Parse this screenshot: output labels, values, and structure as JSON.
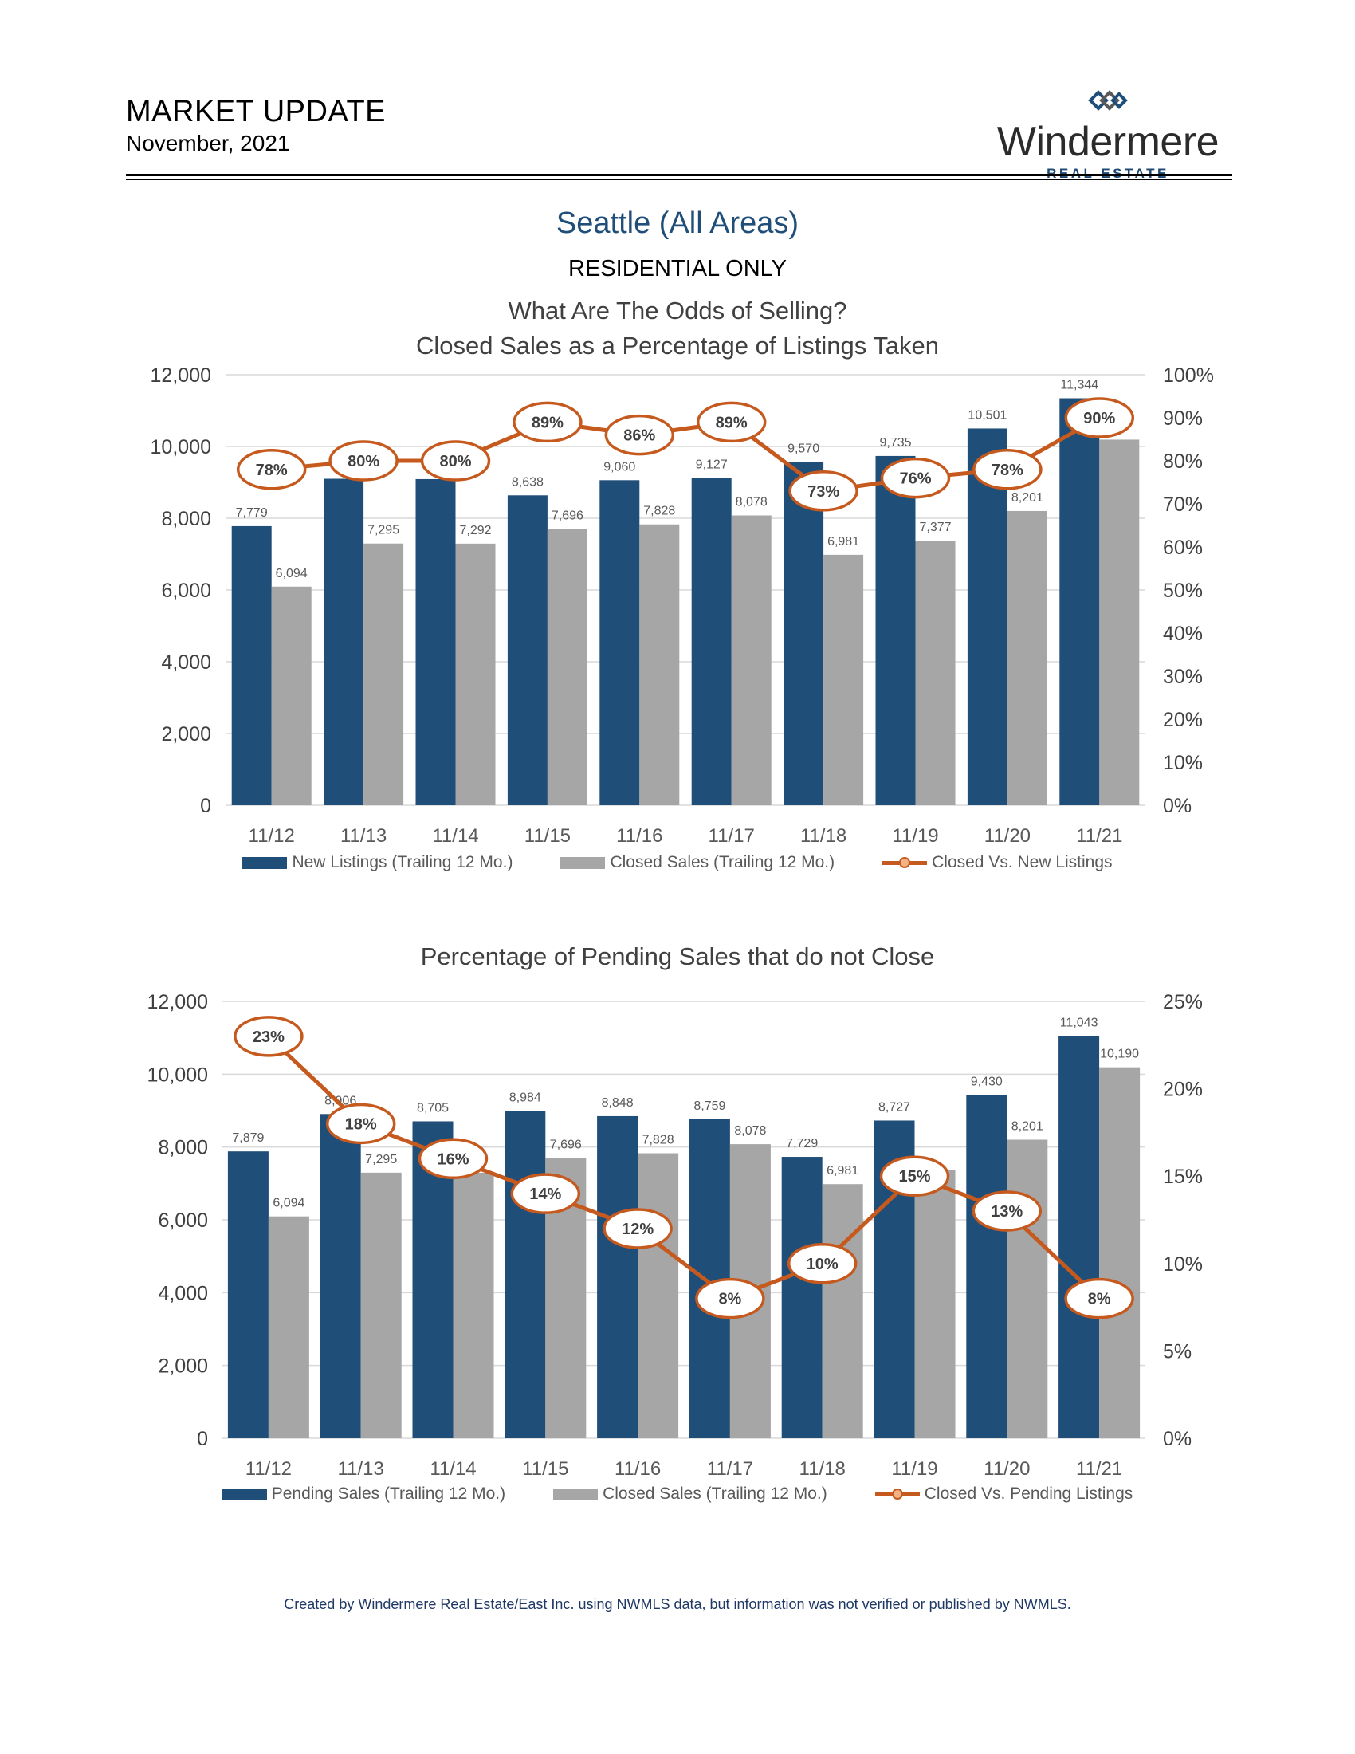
{
  "header": {
    "title": "MARKET UPDATE",
    "date": "November, 2021"
  },
  "logo": {
    "name": "Windermere",
    "sub": "REAL ESTATE",
    "icon": "windermere-diamond-logo"
  },
  "area": "Seattle (All Areas)",
  "subtitle": "RESIDENTIAL ONLY",
  "colors": {
    "primary": "#1f4e79",
    "secondary": "#a6a6a6",
    "line": "#c65a1e"
  },
  "chart_data": [
    {
      "type": "bar",
      "title_line1": "What Are The Odds of Selling?",
      "title_line2": "Closed Sales as a Percentage of Listings Taken",
      "categories": [
        "11/12",
        "11/13",
        "11/14",
        "11/15",
        "11/16",
        "11/17",
        "11/18",
        "11/19",
        "11/20",
        "11/21"
      ],
      "series": [
        {
          "name": "New Listings (Trailing 12 Mo.)",
          "values": [
            7779,
            9100,
            9090,
            8638,
            9060,
            9127,
            9570,
            9735,
            10501,
            11344
          ],
          "labels": [
            "7,779",
            "",
            "",
            "8,638",
            "9,060",
            "9,127",
            "9,570",
            "9,735",
            "10,501",
            "11,344"
          ]
        },
        {
          "name": "Closed Sales (Trailing 12 Mo.)",
          "values": [
            6094,
            7295,
            7292,
            7696,
            7828,
            8078,
            6981,
            7377,
            8201,
            10190
          ],
          "labels": [
            "6,094",
            "7,295",
            "7,292",
            "7,696",
            "7,828",
            "8,078",
            "6,981",
            "7,377",
            "8,201",
            ""
          ]
        }
      ],
      "line": {
        "name": "Closed Vs. New Listings",
        "values": [
          78,
          80,
          80,
          89,
          86,
          89,
          73,
          76,
          78,
          90
        ],
        "labels": [
          "78%",
          "80%",
          "80%",
          "89%",
          "86%",
          "89%",
          "73%",
          "76%",
          "78%",
          "90%"
        ]
      },
      "y_left": {
        "min": 0,
        "max": 12000,
        "ticks": [
          "0",
          "2,000",
          "4,000",
          "6,000",
          "8,000",
          "10,000",
          "12,000"
        ]
      },
      "y_right": {
        "min": 0,
        "max": 100,
        "ticks": [
          "0%",
          "10%",
          "20%",
          "30%",
          "40%",
          "50%",
          "60%",
          "70%",
          "80%",
          "90%",
          "100%"
        ]
      },
      "grid": true,
      "legend_position": "bottom"
    },
    {
      "type": "bar",
      "title_line1": "Percentage of Pending Sales that do not Close",
      "title_line2": "",
      "categories": [
        "11/12",
        "11/13",
        "11/14",
        "11/15",
        "11/16",
        "11/17",
        "11/18",
        "11/19",
        "11/20",
        "11/21"
      ],
      "series": [
        {
          "name": "Pending Sales (Trailing 12 Mo.)",
          "values": [
            7879,
            8906,
            8705,
            8984,
            8848,
            8759,
            7729,
            8727,
            9430,
            11043
          ],
          "labels": [
            "7,879",
            "8,906",
            "8,705",
            "8,984",
            "8,848",
            "8,759",
            "7,729",
            "8,727",
            "9,430",
            "11,043"
          ]
        },
        {
          "name": "Closed Sales (Trailing 12 Mo.)",
          "values": [
            6094,
            7295,
            7292,
            7696,
            7828,
            8078,
            6981,
            7377,
            8201,
            10190
          ],
          "labels": [
            "6,094",
            "7,295",
            "",
            "7,696",
            "7,828",
            "8,078",
            "6,981",
            "",
            "8,201",
            "10,190"
          ]
        }
      ],
      "line": {
        "name": "Closed Vs. Pending Listings",
        "values": [
          23,
          18,
          16,
          14,
          12,
          8,
          10,
          15,
          13,
          8
        ],
        "labels": [
          "23%",
          "18%",
          "16%",
          "14%",
          "12%",
          "8%",
          "10%",
          "15%",
          "13%",
          "8%"
        ]
      },
      "y_left": {
        "min": 0,
        "max": 12000,
        "ticks": [
          "0",
          "2,000",
          "4,000",
          "6,000",
          "8,000",
          "10,000",
          "12,000"
        ]
      },
      "y_right": {
        "min": 0,
        "max": 25,
        "ticks": [
          "0%",
          "5%",
          "10%",
          "15%",
          "20%",
          "25%"
        ]
      },
      "grid": true,
      "legend_position": "bottom"
    }
  ],
  "footer": "Created by Windermere Real Estate/East Inc. using NWMLS data, but information was not verified or published by NWMLS."
}
